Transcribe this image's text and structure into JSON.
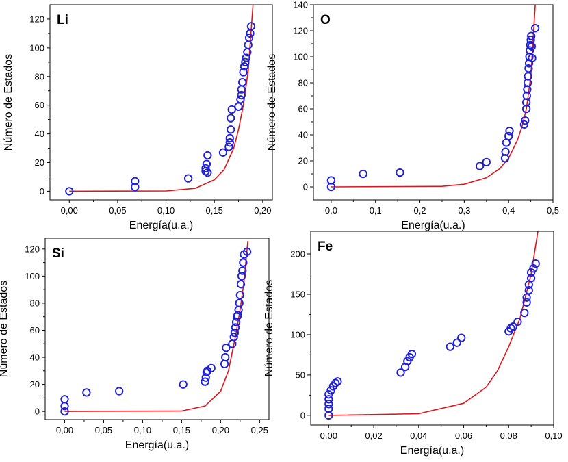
{
  "colors": {
    "points": "#1f1fd6",
    "fit": "#e0151b",
    "axis": "#000000",
    "background": "#ffffff"
  },
  "chart_data": [
    {
      "type": "scatter",
      "title": "Li",
      "xlabel": "Energía(u.a.)",
      "ylabel": "Número de Estados",
      "xlim": [
        -0.02,
        0.21
      ],
      "ylim": [
        -6,
        130
      ],
      "xticks": [
        0.0,
        0.05,
        0.1,
        0.15,
        0.2
      ],
      "xtick_labels": [
        "0,00",
        "0,05",
        "0,10",
        "0,15",
        "0,20"
      ],
      "yticks": [
        0,
        20,
        40,
        60,
        80,
        100,
        120
      ],
      "ytick_labels": [
        "0",
        "20",
        "40",
        "60",
        "80",
        "100",
        "120"
      ],
      "series": [
        {
          "kind": "points",
          "x": [
            0.0,
            0.068,
            0.068,
            0.123,
            0.141,
            0.141,
            0.142,
            0.143,
            0.143,
            0.159,
            0.165,
            0.166,
            0.166,
            0.167,
            0.167,
            0.168,
            0.175,
            0.177,
            0.178,
            0.178,
            0.179,
            0.18,
            0.181,
            0.182,
            0.183,
            0.184,
            0.185,
            0.186,
            0.187,
            0.188
          ],
          "y": [
            0,
            3,
            7,
            9,
            14,
            16,
            19,
            25,
            13,
            27,
            31,
            34,
            37,
            43,
            51,
            57,
            59,
            64,
            67,
            71,
            76,
            83,
            87,
            90,
            93,
            97,
            102,
            107,
            110,
            115
          ]
        },
        {
          "kind": "line",
          "x": [
            0.0,
            0.1,
            0.13,
            0.15,
            0.16,
            0.17,
            0.175,
            0.18,
            0.185,
            0.19
          ],
          "y": [
            0,
            0.2,
            2,
            8,
            15,
            30,
            43,
            60,
            84,
            130
          ]
        }
      ]
    },
    {
      "type": "scatter",
      "title": "O",
      "xlabel": "Energía(u.a.)",
      "ylabel": "Número de Estados",
      "xlim": [
        -0.04,
        0.5
      ],
      "ylim": [
        -10,
        140
      ],
      "xticks": [
        0.0,
        0.1,
        0.2,
        0.3,
        0.4,
        0.5
      ],
      "xtick_labels": [
        "0,0",
        "0,1",
        "0,2",
        "0,3",
        "0,4",
        "0,5"
      ],
      "yticks": [
        0,
        20,
        40,
        60,
        80,
        100,
        120,
        140
      ],
      "ytick_labels": [
        "0",
        "20",
        "40",
        "60",
        "80",
        "100",
        "120",
        "140"
      ],
      "series": [
        {
          "kind": "points",
          "x": [
            0.0,
            0.0,
            0.072,
            0.155,
            0.335,
            0.35,
            0.392,
            0.393,
            0.395,
            0.4,
            0.402,
            0.435,
            0.437,
            0.44,
            0.44,
            0.441,
            0.442,
            0.443,
            0.444,
            0.445,
            0.446,
            0.447,
            0.448,
            0.449,
            0.45,
            0.451,
            0.452,
            0.453,
            0.46
          ],
          "y": [
            0,
            5,
            10,
            11,
            16,
            19,
            22,
            27,
            34,
            39,
            43,
            48,
            51,
            60,
            65,
            70,
            75,
            80,
            85,
            91,
            95,
            100,
            105,
            109,
            113,
            116,
            108,
            99,
            122
          ]
        },
        {
          "kind": "line",
          "x": [
            0.0,
            0.25,
            0.3,
            0.35,
            0.38,
            0.4,
            0.42,
            0.43,
            0.44,
            0.45,
            0.46
          ],
          "y": [
            0,
            0.4,
            2,
            7,
            14,
            22,
            36,
            46,
            60,
            85,
            140
          ]
        }
      ]
    },
    {
      "type": "scatter",
      "title": "Si",
      "xlabel": "Energía(u.a.)",
      "ylabel": "Número de Estados",
      "xlim": [
        -0.025,
        0.262
      ],
      "ylim": [
        -6,
        128
      ],
      "xticks": [
        0.0,
        0.05,
        0.1,
        0.15,
        0.2,
        0.25
      ],
      "xtick_labels": [
        "0,00",
        "0,05",
        "0,10",
        "0,15",
        "0,20",
        "0,25"
      ],
      "yticks": [
        0,
        20,
        40,
        60,
        80,
        100,
        120
      ],
      "ytick_labels": [
        "0",
        "20",
        "40",
        "60",
        "80",
        "100",
        "120"
      ],
      "series": [
        {
          "kind": "points",
          "x": [
            0.0,
            0.0,
            0.0,
            0.028,
            0.07,
            0.152,
            0.18,
            0.181,
            0.182,
            0.183,
            0.188,
            0.205,
            0.206,
            0.207,
            0.215,
            0.217,
            0.218,
            0.219,
            0.22,
            0.221,
            0.222,
            0.223,
            0.224,
            0.225,
            0.226,
            0.227,
            0.228,
            0.229,
            0.23,
            0.234
          ],
          "y": [
            0,
            4,
            9,
            14,
            15,
            20,
            22,
            25,
            29,
            30,
            32,
            35,
            40,
            47,
            50,
            55,
            58,
            62,
            66,
            70,
            71,
            75,
            80,
            86,
            94,
            100,
            104,
            110,
            116,
            118
          ]
        },
        {
          "kind": "line",
          "x": [
            0.0,
            0.15,
            0.18,
            0.2,
            0.21,
            0.22,
            0.225,
            0.23,
            0.235
          ],
          "y": [
            0,
            0.3,
            4,
            15,
            30,
            58,
            75,
            96,
            126
          ]
        }
      ]
    },
    {
      "type": "scatter",
      "title": "Fe",
      "xlabel": "Energía(u.a.)",
      "ylabel": "Número de Estados",
      "xlim": [
        -0.008,
        0.1
      ],
      "ylim": [
        -12,
        228
      ],
      "xticks": [
        0.0,
        0.02,
        0.04,
        0.06,
        0.08,
        0.1
      ],
      "xtick_labels": [
        "0,00",
        "0,02",
        "0,04",
        "0,06",
        "0,08",
        "0,10"
      ],
      "yticks": [
        0,
        50,
        100,
        150,
        200
      ],
      "ytick_labels": [
        "0",
        "50",
        "100",
        "150",
        "200"
      ],
      "series": [
        {
          "kind": "points",
          "x": [
            0.0,
            0.0,
            0.0,
            0.0,
            0.0,
            0.001,
            0.002,
            0.003,
            0.004,
            0.032,
            0.034,
            0.035,
            0.036,
            0.037,
            0.054,
            0.057,
            0.059,
            0.08,
            0.081,
            0.082,
            0.084,
            0.087,
            0.088,
            0.088,
            0.089,
            0.089,
            0.09,
            0.09,
            0.091,
            0.092
          ],
          "y": [
            0,
            8,
            14,
            20,
            26,
            31,
            36,
            40,
            42,
            53,
            60,
            67,
            72,
            76,
            85,
            90,
            96,
            104,
            108,
            110,
            116,
            127,
            140,
            146,
            155,
            162,
            170,
            177,
            182,
            188
          ]
        },
        {
          "kind": "line",
          "x": [
            0.0,
            0.04,
            0.06,
            0.07,
            0.075,
            0.08,
            0.085,
            0.09,
            0.093
          ],
          "y": [
            0,
            2,
            15,
            35,
            55,
            85,
            120,
            175,
            228
          ]
        }
      ]
    }
  ]
}
